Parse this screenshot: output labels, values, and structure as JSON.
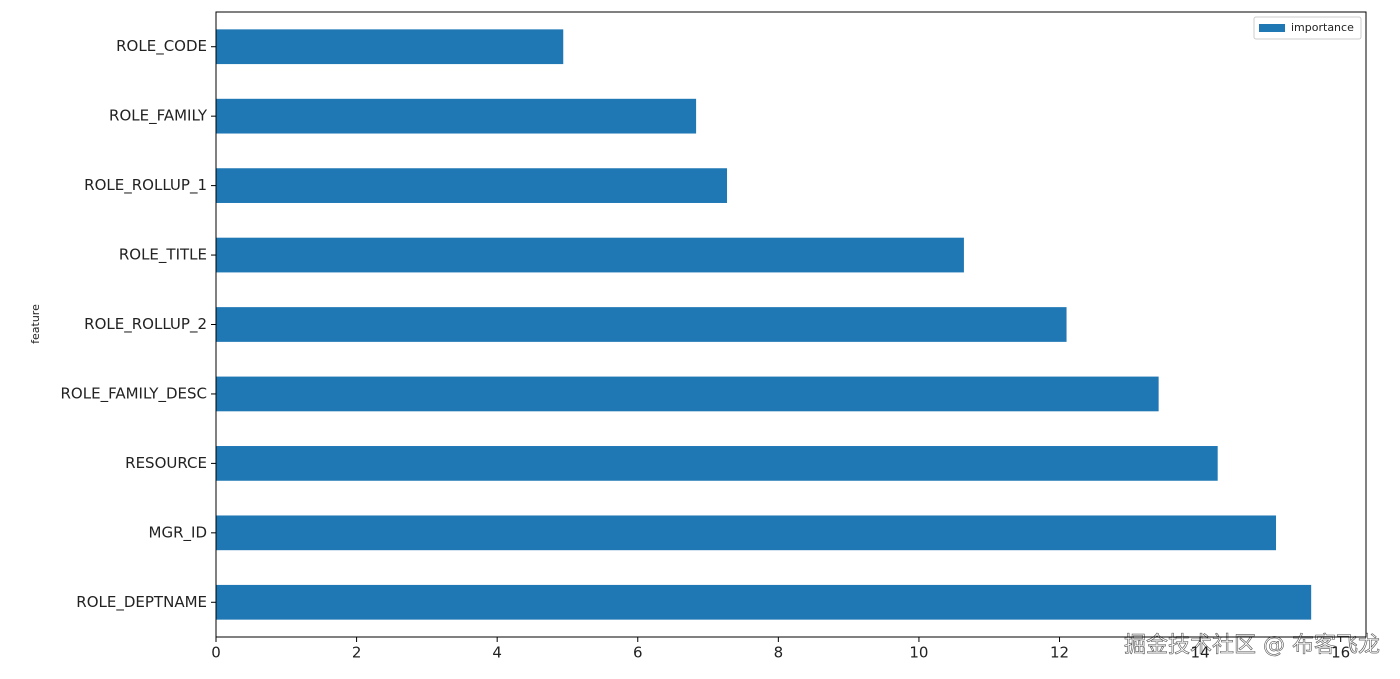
{
  "chart_data": {
    "type": "barh",
    "y_label": "feature",
    "categories": [
      "ROLE_DEPTNAME",
      "MGR_ID",
      "RESOURCE",
      "ROLE_FAMILY_DESC",
      "ROLE_ROLLUP_2",
      "ROLE_TITLE",
      "ROLE_ROLLUP_1",
      "ROLE_FAMILY",
      "ROLE_CODE"
    ],
    "series": [
      {
        "name": "importance",
        "color": "#1f77b4",
        "values": [
          15.58,
          15.08,
          14.25,
          13.41,
          12.1,
          10.64,
          7.27,
          6.83,
          4.94
        ]
      }
    ],
    "xlim": [
      0,
      16.36
    ],
    "xticks": [
      0,
      2,
      4,
      6,
      8,
      10,
      12,
      14,
      16
    ],
    "legend": "upper right",
    "watermark": "掘金技术社区 @ 布客飞龙"
  }
}
